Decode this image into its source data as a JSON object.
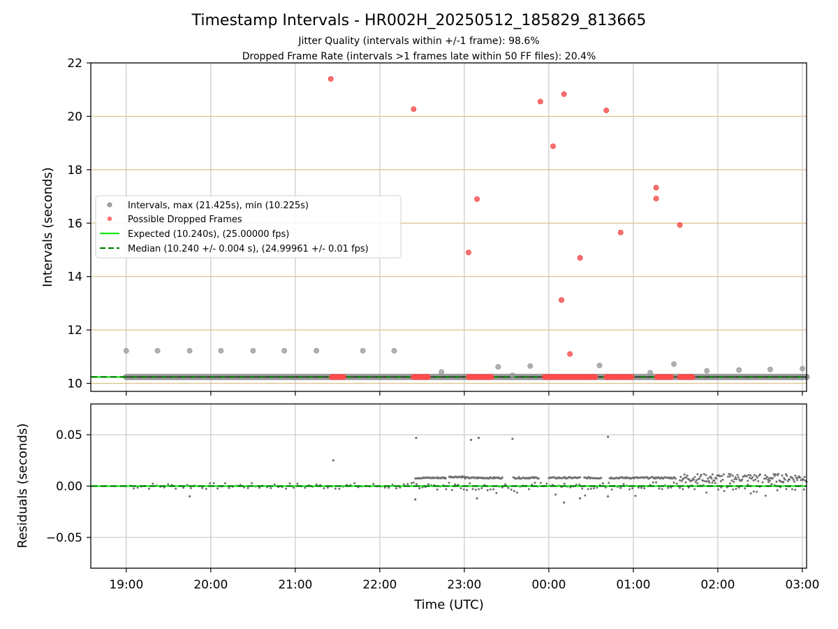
{
  "title": "Timestamp Intervals - HR002H_20250512_185829_813665",
  "subtitle_line1": "Jitter Quality (intervals within +/-1 frame): 98.6%",
  "subtitle_line2": "Dropped Frame Rate (intervals >1 frames late within 50 FF files): 20.4%",
  "colors": {
    "intervals": "#9e9e9e",
    "dropped": "#ff4b4b",
    "expected": "#19e619",
    "median": "#008000",
    "hgrid_top": "#d8c387",
    "grid": "#c8c8c8",
    "residual": "#707070"
  },
  "chart_data": [
    {
      "type": "scatter",
      "ylabel": "Intervals (seconds)",
      "ylim": [
        9.7,
        22
      ],
      "xlim_hours": [
        18.58,
        27.05
      ],
      "yticks": [
        10,
        12,
        14,
        16,
        18,
        20,
        22
      ],
      "ytick_labels": [
        "10",
        "12",
        "14",
        "16",
        "18",
        "20",
        "22"
      ],
      "grid": true,
      "legend_position": "center-left",
      "legend": [
        "Intervals, max (21.425s), min (10.225s)",
        "Possible Dropped Frames",
        "Expected (10.240s), (25.00000 fps)",
        "Median (10.240 +/- 0.004 s), (24.99961 +/- 0.01 fps)"
      ],
      "expected_value": 10.24,
      "median_value": 10.24,
      "baseline_range_hours": [
        19.0,
        27.05
      ],
      "intervals_points": [
        [
          19.0,
          11.22
        ],
        [
          19.37,
          11.22
        ],
        [
          19.75,
          11.22
        ],
        [
          20.12,
          11.22
        ],
        [
          20.5,
          11.22
        ],
        [
          20.87,
          11.22
        ],
        [
          21.25,
          11.22
        ],
        [
          21.8,
          11.22
        ],
        [
          22.17,
          11.22
        ],
        [
          22.73,
          10.43
        ],
        [
          23.4,
          10.62
        ],
        [
          23.57,
          10.3
        ],
        [
          23.78,
          10.65
        ],
        [
          24.6,
          10.67
        ],
        [
          25.2,
          10.4
        ],
        [
          25.48,
          10.72
        ],
        [
          25.87,
          10.47
        ],
        [
          26.25,
          10.5
        ],
        [
          26.62,
          10.52
        ],
        [
          27.0,
          10.55
        ]
      ],
      "dropped_points": [
        [
          21.42,
          21.4
        ],
        [
          22.4,
          20.27
        ],
        [
          23.05,
          14.9
        ],
        [
          23.15,
          16.9
        ],
        [
          23.9,
          20.55
        ],
        [
          24.05,
          18.88
        ],
        [
          24.15,
          13.12
        ],
        [
          24.18,
          20.83
        ],
        [
          24.25,
          11.1
        ],
        [
          24.37,
          14.7
        ],
        [
          24.68,
          20.22
        ],
        [
          24.85,
          15.65
        ],
        [
          25.27,
          17.33
        ],
        [
          25.27,
          16.92
        ],
        [
          25.55,
          15.93
        ]
      ],
      "dropped_clusters_hours": [
        [
          21.43,
          21.57
        ],
        [
          22.4,
          22.57
        ],
        [
          23.05,
          23.32
        ],
        [
          23.95,
          24.55
        ],
        [
          24.68,
          24.98
        ],
        [
          25.28,
          25.45
        ],
        [
          25.55,
          25.7
        ]
      ]
    },
    {
      "type": "scatter",
      "ylabel": "Residuals (seconds)",
      "xlabel": "Time (UTC)",
      "ylim": [
        -0.08,
        0.08
      ],
      "yticks": [
        0.05,
        0.0,
        -0.05
      ],
      "ytick_labels": [
        "0.05",
        "0.00",
        "−0.05"
      ],
      "xticks_hours": [
        19,
        20,
        21,
        22,
        23,
        24,
        25,
        26,
        27
      ],
      "xtick_labels": [
        "19:00",
        "20:00",
        "21:00",
        "22:00",
        "23:00",
        "00:00",
        "01:00",
        "02:00",
        "03:00"
      ],
      "grid": true,
      "expected_value": 0.0,
      "median_value": 0.0,
      "outliers": [
        [
          21.45,
          0.025
        ],
        [
          22.43,
          0.047
        ],
        [
          23.08,
          0.045
        ],
        [
          23.17,
          0.047
        ],
        [
          23.57,
          0.046
        ],
        [
          24.7,
          0.048
        ],
        [
          19.75,
          -0.01
        ],
        [
          24.18,
          -0.016
        ],
        [
          22.42,
          -0.013
        ],
        [
          23.15,
          -0.012
        ],
        [
          24.37,
          -0.012
        ],
        [
          24.7,
          -0.01
        ]
      ],
      "positive_bands_hours": [
        [
          22.42,
          22.78,
          0.008
        ],
        [
          22.82,
          23.0,
          0.009
        ],
        [
          23.0,
          23.45,
          0.008
        ],
        [
          23.58,
          23.88,
          0.008
        ],
        [
          24.0,
          24.37,
          0.008
        ],
        [
          24.42,
          24.62,
          0.008
        ],
        [
          24.72,
          25.2,
          0.008
        ],
        [
          25.22,
          25.5,
          0.008
        ],
        [
          25.55,
          26.07,
          0.008
        ],
        [
          26.12,
          26.5,
          0.008
        ],
        [
          26.55,
          27.05,
          0.008
        ]
      ]
    }
  ]
}
